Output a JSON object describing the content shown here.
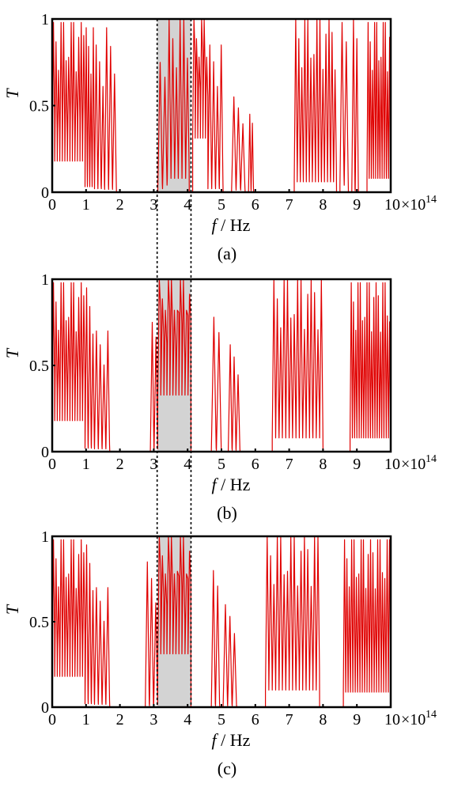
{
  "chart_data": {
    "type": "line",
    "series_color": "#e00000",
    "band_color": "#d3d3d3",
    "shared": {
      "xlabel_var": "f",
      "xlabel_unit": " / Hz",
      "ylabel": "T",
      "x_multiplier": "10",
      "x_multiplier_prefix": "×",
      "x_exponent": "14",
      "xlim": [
        0,
        10
      ],
      "ylim": [
        0,
        1
      ],
      "x_ticks": [
        0,
        1,
        2,
        3,
        4,
        5,
        6,
        7,
        8,
        9
      ],
      "x_tick_labels": [
        "0",
        "1",
        "2",
        "3",
        "4",
        "5",
        "6",
        "7",
        "8",
        "9"
      ],
      "x_last_tick_label": "10",
      "y_ticks": [
        0,
        0.5,
        1
      ],
      "y_tick_labels": [
        "0",
        "0.5",
        "1"
      ],
      "highlight_band": [
        3.1,
        4.1
      ],
      "dashed_lines_x": [
        3.1,
        4.1
      ]
    },
    "panels": [
      {
        "label": "(a)",
        "segments": [
          {
            "x0": 0.0,
            "x1": 0.97,
            "lo": 0.45,
            "hi": 0.98,
            "n": 13
          },
          {
            "x0": 0.97,
            "x1": 1.25,
            "lo": 0.08,
            "hi": 0.95,
            "n": 4
          },
          {
            "x0": 1.25,
            "x1": 1.55,
            "lo": 0.05,
            "hi": 0.85,
            "n": 3
          },
          {
            "x0": 1.55,
            "x1": 1.9,
            "lo": 0.04,
            "hi": 0.95,
            "n": 3
          },
          {
            "x0": 3.12,
            "x1": 3.4,
            "lo": 0.05,
            "hi": 0.75,
            "n": 2
          },
          {
            "x0": 3.4,
            "x1": 4.05,
            "lo": 0.2,
            "hi": 1.0,
            "n": 6
          },
          {
            "x0": 4.15,
            "x1": 4.6,
            "lo": 0.78,
            "hi": 1.0,
            "n": 6
          },
          {
            "x0": 4.6,
            "x1": 5.05,
            "lo": 0.05,
            "hi": 0.85,
            "n": 4
          },
          {
            "x0": 5.3,
            "x1": 5.7,
            "lo": 0.03,
            "hi": 0.55,
            "n": 3
          },
          {
            "x0": 5.8,
            "x1": 5.95,
            "lo": 0.02,
            "hi": 0.45,
            "n": 2
          },
          {
            "x0": 7.15,
            "x1": 8.4,
            "lo": 0.15,
            "hi": 1.0,
            "n": 14
          },
          {
            "x0": 8.5,
            "x1": 8.75,
            "lo": 0.1,
            "hi": 0.98,
            "n": 2
          },
          {
            "x0": 8.85,
            "x1": 9.05,
            "lo": 0.02,
            "hi": 1.0,
            "n": 2
          },
          {
            "x0": 9.3,
            "x1": 10.0,
            "lo": 0.2,
            "hi": 0.98,
            "n": 11
          }
        ]
      },
      {
        "label": "(b)",
        "segments": [
          {
            "x0": 0.0,
            "x1": 0.97,
            "lo": 0.45,
            "hi": 0.98,
            "n": 13
          },
          {
            "x0": 0.97,
            "x1": 1.25,
            "lo": 0.05,
            "hi": 0.95,
            "n": 3
          },
          {
            "x0": 1.25,
            "x1": 1.7,
            "lo": 0.04,
            "hi": 0.7,
            "n": 4
          },
          {
            "x0": 2.9,
            "x1": 3.12,
            "lo": 0.02,
            "hi": 0.75,
            "n": 2
          },
          {
            "x0": 3.12,
            "x1": 4.1,
            "lo": 0.82,
            "hi": 1.0,
            "n": 11
          },
          {
            "x0": 4.7,
            "x1": 5.0,
            "lo": 0.02,
            "hi": 0.78,
            "n": 2
          },
          {
            "x0": 5.2,
            "x1": 5.55,
            "lo": 0.02,
            "hi": 0.62,
            "n": 3
          },
          {
            "x0": 6.5,
            "x1": 8.0,
            "lo": 0.2,
            "hi": 1.0,
            "n": 15
          },
          {
            "x0": 8.8,
            "x1": 10.0,
            "lo": 0.2,
            "hi": 0.98,
            "n": 18
          }
        ]
      },
      {
        "label": "(c)",
        "segments": [
          {
            "x0": 0.0,
            "x1": 0.97,
            "lo": 0.45,
            "hi": 0.98,
            "n": 13
          },
          {
            "x0": 0.97,
            "x1": 1.25,
            "lo": 0.05,
            "hi": 0.95,
            "n": 3
          },
          {
            "x0": 1.25,
            "x1": 1.7,
            "lo": 0.04,
            "hi": 0.7,
            "n": 4
          },
          {
            "x0": 2.75,
            "x1": 3.12,
            "lo": 0.02,
            "hi": 0.85,
            "n": 3
          },
          {
            "x0": 3.12,
            "x1": 4.1,
            "lo": 0.78,
            "hi": 1.0,
            "n": 11
          },
          {
            "x0": 4.7,
            "x1": 4.95,
            "lo": 0.02,
            "hi": 0.8,
            "n": 2
          },
          {
            "x0": 5.05,
            "x1": 5.45,
            "lo": 0.02,
            "hi": 0.6,
            "n": 3
          },
          {
            "x0": 6.3,
            "x1": 7.9,
            "lo": 0.25,
            "hi": 1.0,
            "n": 16
          },
          {
            "x0": 8.6,
            "x1": 10.0,
            "lo": 0.22,
            "hi": 0.98,
            "n": 20
          }
        ]
      }
    ]
  }
}
